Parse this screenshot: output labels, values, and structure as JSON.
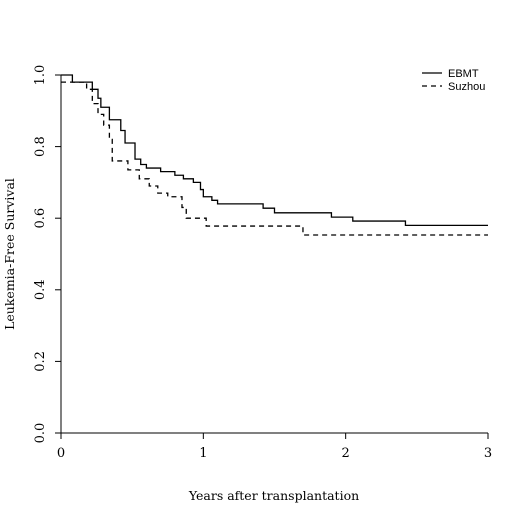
{
  "chart_data": {
    "type": "line",
    "step": true,
    "xlabel": "Years after transplantation",
    "ylabel": "Leukemia-Free Survival",
    "xlim": [
      0,
      3
    ],
    "ylim": [
      0,
      1
    ],
    "xticks": [
      "0",
      "1",
      "2",
      "3"
    ],
    "yticks": [
      "0.0",
      "0.2",
      "0.4",
      "0.6",
      "0.8",
      "1.0"
    ],
    "grid": false,
    "legend_position": "top-right",
    "series": [
      {
        "name": "EBMT",
        "style": "solid",
        "points": [
          [
            0,
            1.0
          ],
          [
            0.08,
            0.98
          ],
          [
            0.22,
            0.96
          ],
          [
            0.26,
            0.935
          ],
          [
            0.28,
            0.91
          ],
          [
            0.34,
            0.875
          ],
          [
            0.42,
            0.845
          ],
          [
            0.45,
            0.81
          ],
          [
            0.52,
            0.765
          ],
          [
            0.56,
            0.75
          ],
          [
            0.6,
            0.74
          ],
          [
            0.7,
            0.73
          ],
          [
            0.8,
            0.72
          ],
          [
            0.86,
            0.71
          ],
          [
            0.93,
            0.7
          ],
          [
            0.98,
            0.68
          ],
          [
            1.0,
            0.66
          ],
          [
            1.06,
            0.65
          ],
          [
            1.1,
            0.64
          ],
          [
            1.42,
            0.628
          ],
          [
            1.5,
            0.615
          ],
          [
            1.9,
            0.603
          ],
          [
            2.05,
            0.592
          ],
          [
            2.42,
            0.58
          ],
          [
            3.0,
            0.58
          ]
        ]
      },
      {
        "name": "Suzhou",
        "style": "dashed",
        "points": [
          [
            0,
            0.98
          ],
          [
            0.18,
            0.96
          ],
          [
            0.22,
            0.92
          ],
          [
            0.26,
            0.89
          ],
          [
            0.3,
            0.86
          ],
          [
            0.34,
            0.82
          ],
          [
            0.36,
            0.76
          ],
          [
            0.47,
            0.735
          ],
          [
            0.55,
            0.71
          ],
          [
            0.62,
            0.69
          ],
          [
            0.68,
            0.67
          ],
          [
            0.75,
            0.66
          ],
          [
            0.85,
            0.63
          ],
          [
            0.88,
            0.6
          ],
          [
            1.02,
            0.578
          ],
          [
            1.7,
            0.553
          ],
          [
            3.0,
            0.553
          ]
        ]
      }
    ]
  }
}
